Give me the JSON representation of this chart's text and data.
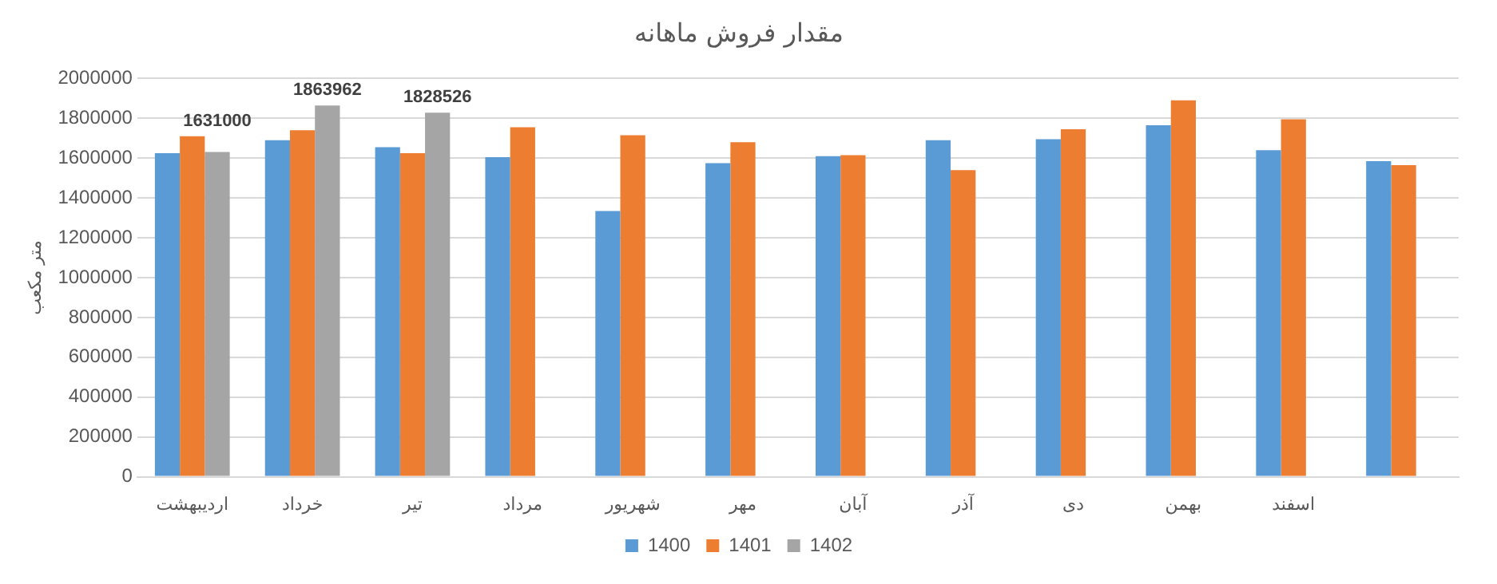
{
  "chart_data": {
    "type": "bar",
    "title": "مقدار فروش ماهانه",
    "ylabel": "متر مکعب",
    "categories": [
      "اردیبهشت",
      "خرداد",
      "تیر",
      "مرداد",
      "شهریور",
      "مهر",
      "آبان",
      "آذر",
      "دی",
      "بهمن",
      "اسفند",
      null
    ],
    "series": [
      {
        "name": "1400",
        "color": "#5b9bd5",
        "values": [
          1625000,
          1690000,
          1655000,
          1605000,
          1335000,
          1575000,
          1610000,
          1690000,
          1695000,
          1765000,
          1640000,
          1585000
        ]
      },
      {
        "name": "1401",
        "color": "#ed7d31",
        "values": [
          1710000,
          1740000,
          1625000,
          1755000,
          1715000,
          1680000,
          1615000,
          1540000,
          1745000,
          1890000,
          1795000,
          1565000
        ]
      },
      {
        "name": "1402",
        "color": "#a5a5a5",
        "values": [
          1631000,
          1863962,
          1828526,
          null,
          null,
          null,
          null,
          null,
          null,
          null,
          null,
          null
        ],
        "value_labels": [
          "1631000",
          "1863962",
          "1828526",
          null,
          null,
          null,
          null,
          null,
          null,
          null,
          null,
          null
        ]
      }
    ],
    "ylim": [
      0,
      2000000
    ],
    "yticks": [
      0,
      200000,
      400000,
      600000,
      800000,
      1000000,
      1200000,
      1400000,
      1600000,
      1800000,
      2000000
    ],
    "grid": "y",
    "legend": "bottom"
  }
}
